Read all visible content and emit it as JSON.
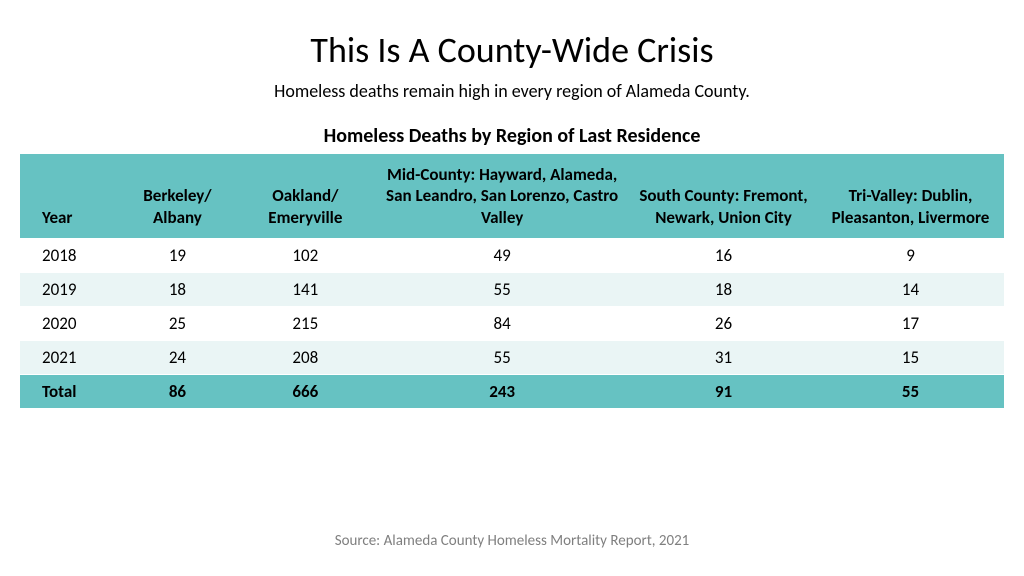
{
  "title": "This Is A County-Wide Crisis",
  "subtitle": "Homeless deaths remain high in every region of Alameda County.",
  "table": {
    "title": "Homeless Deaths by Region of Last Residence",
    "columns": [
      "Year",
      "Berkeley/ Albany",
      "Oakland/ Emeryville",
      "Mid-County: Hayward, Alameda, San Leandro, San Lorenzo, Castro Valley",
      "South County: Fremont, Newark, Union City",
      "Tri-Valley: Dublin, Pleasanton, Livermore"
    ],
    "rows": [
      [
        "2018",
        "19",
        "102",
        "49",
        "16",
        "9"
      ],
      [
        "2019",
        "18",
        "141",
        "55",
        "18",
        "14"
      ],
      [
        "2020",
        "25",
        "215",
        "84",
        "26",
        "17"
      ],
      [
        "2021",
        "24",
        "208",
        "55",
        "31",
        "15"
      ]
    ],
    "total": [
      "Total",
      "86",
      "666",
      "243",
      "91",
      "55"
    ],
    "header_bg": "#66c2c2",
    "row_alt_bg": "#eaf5f5",
    "total_bg": "#66c2c2"
  },
  "source": "Source: Alameda County Homeless Mortality Report, 2021"
}
